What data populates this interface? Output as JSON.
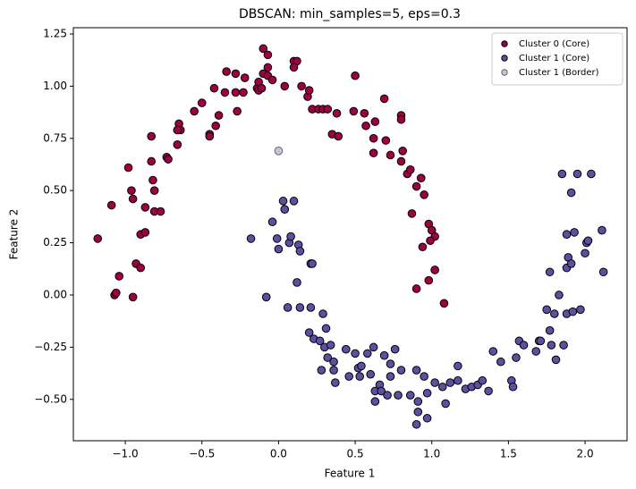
{
  "chart_data": {
    "type": "scatter",
    "title": "DBSCAN: min_samples=5, eps=0.3",
    "x_label": "Feature 1",
    "y_label": "Feature 2",
    "xlim": [
      -1.339,
      2.274
    ],
    "ylim": [
      -0.698,
      1.28
    ],
    "xticks": [
      {
        "value": -1.0,
        "label": "−1.0"
      },
      {
        "value": -0.5,
        "label": "−0.5"
      },
      {
        "value": 0.0,
        "label": "0.0"
      },
      0.5,
      {
        "value": 1.0,
        "label": "1.0"
      },
      1.5,
      {
        "value": 2.0,
        "label": "2.0"
      }
    ],
    "yticks": [
      {
        "value": -0.5,
        "label": "−0.50"
      },
      {
        "value": -0.25,
        "label": "−0.25"
      },
      {
        "value": 0.0,
        "label": "0.00"
      },
      {
        "value": 0.25,
        "label": "0.25"
      },
      {
        "value": 0.5,
        "label": "0.50"
      },
      {
        "value": 0.75,
        "label": "0.75"
      },
      {
        "value": 1.0,
        "label": "1.00"
      },
      {
        "value": 1.25,
        "label": "1.25"
      }
    ],
    "grid": false,
    "legend": "upper right",
    "series": [
      {
        "name": "Cluster 0 (Core)",
        "color": "#9e0142",
        "x": [
          -1.18,
          -1.09,
          -1.07,
          -1.06,
          -1.04,
          -0.95,
          -0.93,
          -0.9,
          -0.9,
          -0.87,
          -0.87,
          -0.98,
          -0.96,
          -0.95,
          -0.82,
          -0.81,
          -0.81,
          -0.77,
          -0.83,
          -0.73,
          -0.72,
          -0.83,
          -0.66,
          -0.65,
          -0.64,
          -0.66,
          -0.55,
          -0.5,
          -0.45,
          -0.45,
          -0.42,
          -0.41,
          -0.39,
          -0.34,
          -0.35,
          -0.28,
          -0.28,
          -0.27,
          -0.23,
          -0.22,
          -0.14,
          -0.13,
          -0.1,
          -0.07,
          -0.1,
          -0.07,
          -0.13,
          -0.11,
          -0.07,
          -0.04,
          0.04,
          0.1,
          0.12,
          0.1,
          0.15,
          0.19,
          0.2,
          0.22,
          0.26,
          0.29,
          0.32,
          0.35,
          0.39,
          0.38,
          0.49,
          0.5,
          0.56,
          0.57,
          0.62,
          0.62,
          0.63,
          0.69,
          0.7,
          0.73,
          0.8,
          0.8,
          0.81,
          0.8,
          0.84,
          0.86,
          0.9,
          0.93,
          0.95,
          0.87,
          0.98,
          1.0,
          1.02,
          0.99,
          0.94,
          0.9,
          1.02,
          0.98,
          1.08
        ],
        "values": [
          0.27,
          0.43,
          0.0,
          0.01,
          0.09,
          -0.01,
          0.15,
          0.13,
          0.29,
          0.3,
          0.42,
          0.61,
          0.5,
          0.46,
          0.55,
          0.5,
          0.4,
          0.4,
          0.64,
          0.66,
          0.65,
          0.76,
          0.72,
          0.82,
          0.79,
          0.79,
          0.88,
          0.92,
          0.77,
          0.76,
          0.99,
          0.81,
          0.86,
          1.07,
          0.97,
          1.06,
          0.97,
          0.88,
          0.97,
          1.04,
          0.99,
          1.02,
          1.06,
          1.15,
          1.18,
          1.09,
          0.98,
          0.99,
          1.05,
          1.03,
          1.0,
          1.12,
          1.12,
          1.09,
          1.0,
          0.95,
          0.98,
          0.89,
          0.89,
          0.89,
          0.89,
          0.77,
          0.76,
          0.87,
          0.88,
          1.05,
          0.87,
          0.81,
          0.68,
          0.75,
          0.83,
          0.94,
          0.74,
          0.67,
          0.86,
          0.84,
          0.69,
          0.64,
          0.58,
          0.6,
          0.52,
          0.56,
          0.48,
          0.39,
          0.34,
          0.31,
          0.28,
          0.26,
          0.23,
          0.03,
          0.12,
          0.07,
          -0.04
        ]
      },
      {
        "name": "Cluster 1 (Core)",
        "color": "#5e4fa2",
        "x": [
          -0.18,
          -0.08,
          -0.04,
          -0.01,
          0.0,
          0.03,
          0.04,
          0.07,
          0.08,
          0.1,
          0.13,
          0.14,
          0.12,
          0.21,
          0.22,
          0.06,
          0.14,
          0.21,
          0.2,
          0.23,
          0.27,
          0.29,
          0.31,
          0.3,
          0.34,
          0.32,
          0.36,
          0.28,
          0.36,
          0.37,
          0.44,
          0.46,
          0.5,
          0.52,
          0.54,
          0.53,
          0.58,
          0.6,
          0.62,
          0.63,
          0.66,
          0.69,
          0.73,
          0.76,
          0.8,
          0.73,
          0.63,
          0.67,
          0.71,
          0.78,
          0.86,
          0.9,
          0.91,
          0.9,
          0.97,
          0.91,
          0.95,
          0.97,
          1.02,
          1.07,
          1.09,
          1.12,
          1.17,
          1.17,
          1.22,
          1.26,
          1.3,
          1.33,
          1.37,
          1.4,
          1.45,
          1.52,
          1.53,
          1.55,
          1.57,
          1.6,
          1.7,
          1.68,
          1.71,
          1.75,
          1.77,
          1.78,
          1.77,
          1.8,
          1.83,
          1.81,
          1.86,
          1.88,
          1.92,
          1.97,
          1.88,
          1.89,
          1.91,
          1.88,
          1.85,
          1.95,
          2.04,
          1.91,
          2.0,
          2.01,
          2.02,
          2.11,
          2.12,
          1.93
        ],
        "values": [
          0.27,
          -0.01,
          0.35,
          0.27,
          0.22,
          0.45,
          0.41,
          0.25,
          0.28,
          0.45,
          0.24,
          0.21,
          0.06,
          0.15,
          0.15,
          -0.06,
          -0.06,
          -0.06,
          -0.18,
          -0.21,
          -0.22,
          -0.09,
          -0.16,
          -0.25,
          -0.24,
          -0.3,
          -0.32,
          -0.36,
          -0.36,
          -0.42,
          -0.26,
          -0.39,
          -0.28,
          -0.35,
          -0.34,
          -0.39,
          -0.28,
          -0.38,
          -0.25,
          -0.46,
          -0.43,
          -0.29,
          -0.33,
          -0.26,
          -0.36,
          -0.39,
          -0.51,
          -0.46,
          -0.48,
          -0.48,
          -0.48,
          -0.36,
          -0.56,
          -0.62,
          -0.59,
          -0.51,
          -0.39,
          -0.47,
          -0.42,
          -0.44,
          -0.52,
          -0.42,
          -0.34,
          -0.41,
          -0.45,
          -0.44,
          -0.43,
          -0.41,
          -0.46,
          -0.27,
          -0.32,
          -0.41,
          -0.44,
          -0.3,
          -0.22,
          -0.24,
          -0.22,
          -0.27,
          -0.22,
          -0.07,
          -0.17,
          -0.24,
          0.11,
          -0.09,
          0.0,
          -0.31,
          -0.24,
          -0.09,
          -0.08,
          -0.07,
          0.13,
          0.18,
          0.15,
          0.29,
          0.58,
          0.58,
          0.58,
          0.49,
          0.2,
          0.25,
          0.26,
          0.31,
          0.11,
          0.3
        ]
      },
      {
        "name": "Cluster 1 (Border)",
        "color": "#a29fb8",
        "x": [
          0.0
        ],
        "values": [
          0.69
        ]
      }
    ]
  }
}
